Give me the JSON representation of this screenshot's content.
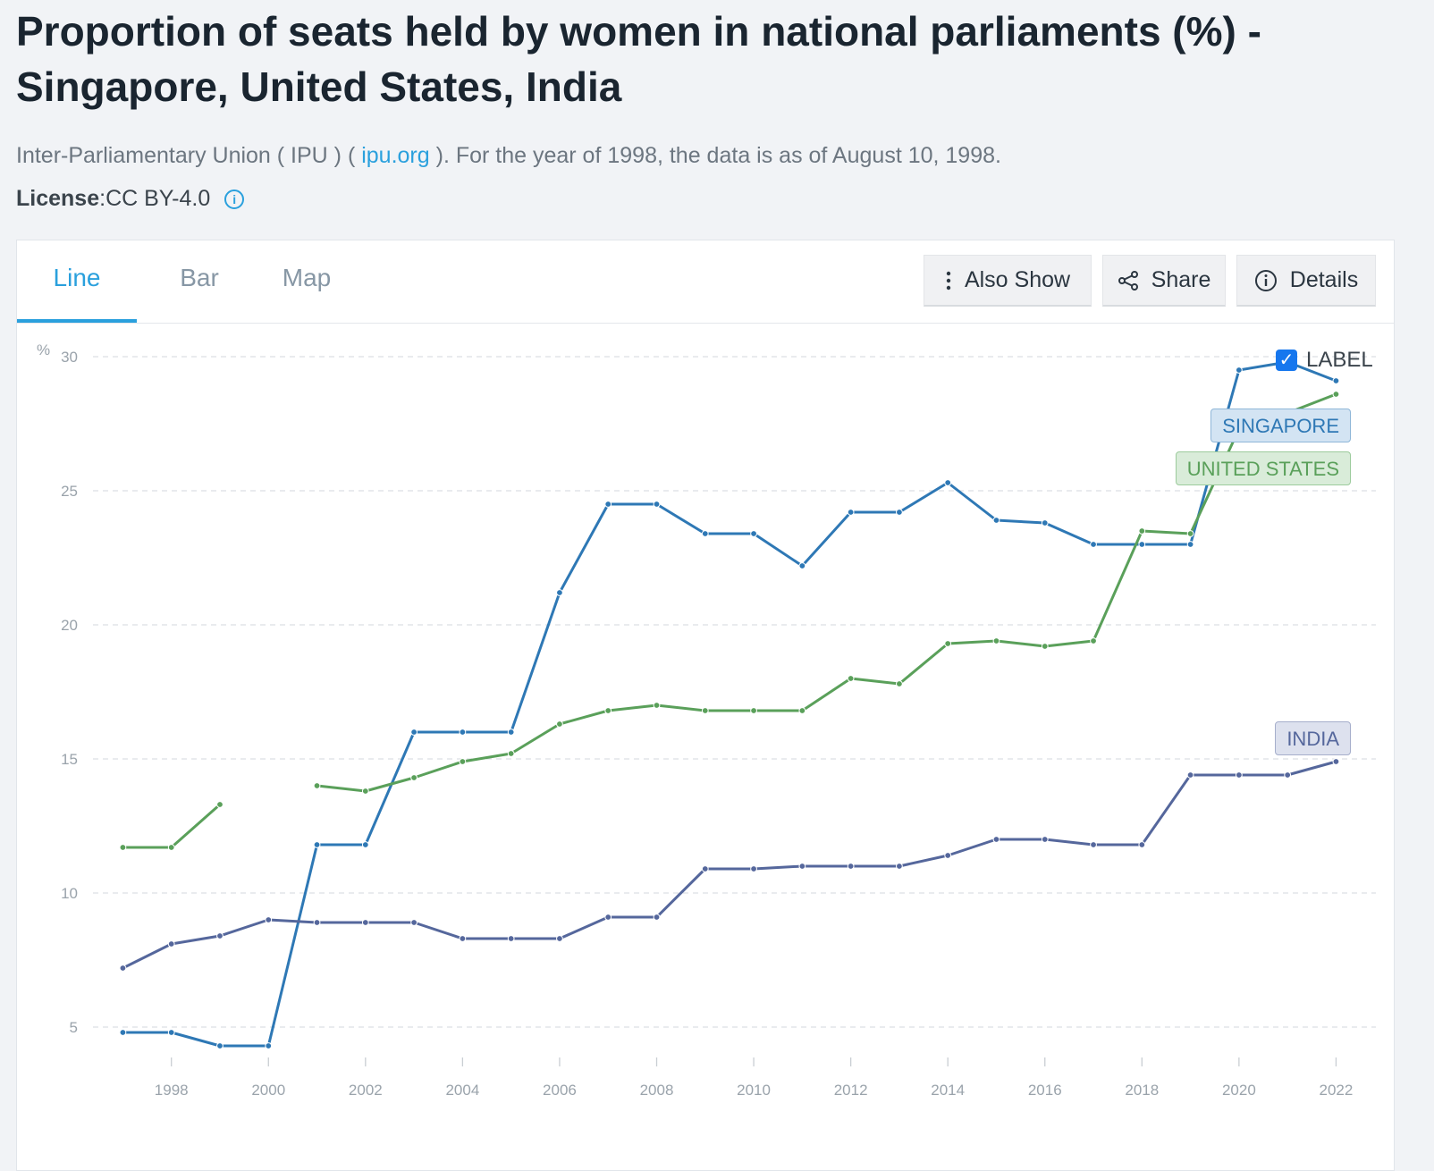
{
  "page": {
    "title": "Proportion of seats held by women in national parliaments (%) - Singapore, United States, India",
    "source_prefix": "Inter-Parliamentary Union ( IPU ) ( ",
    "source_link": "ipu.org",
    "source_suffix": " ). For the year of 1998, the data is as of August 10, 1998.",
    "license_label": "License",
    "license_sep": " : ",
    "license_value": "CC BY-4.0",
    "license_info_icon": "info-icon"
  },
  "tabs": [
    {
      "label": "Line",
      "active": true
    },
    {
      "label": "Bar",
      "active": false
    },
    {
      "label": "Map",
      "active": false
    }
  ],
  "toolbar": {
    "also_show": {
      "label": "Also Show",
      "icon": "vertical-dots-icon"
    },
    "share": {
      "label": "Share",
      "icon": "share-icon"
    },
    "details": {
      "label": "Details",
      "icon": "info-circle-icon"
    }
  },
  "label_toggle": {
    "label": "LABEL",
    "checked": true
  },
  "colors": {
    "singapore": "#2e78b5",
    "united_states": "#5aa05a",
    "india": "#55679c",
    "grid": "#dcdfe3",
    "axis_text": "#9aa3ab"
  },
  "chart_data": {
    "type": "line",
    "ylabel": "%",
    "ylim": [
      3,
      31
    ],
    "yticks": [
      5,
      10,
      15,
      20,
      25,
      30
    ],
    "xlim": [
      1996.2,
      2022.6
    ],
    "xticks": [
      1998,
      2000,
      2002,
      2004,
      2006,
      2008,
      2010,
      2012,
      2014,
      2016,
      2018,
      2020,
      2022
    ],
    "grid": true,
    "x": [
      1997,
      1998,
      1999,
      2000,
      2001,
      2002,
      2003,
      2004,
      2005,
      2006,
      2007,
      2008,
      2009,
      2010,
      2011,
      2012,
      2013,
      2014,
      2015,
      2016,
      2017,
      2018,
      2019,
      2020,
      2021,
      2022
    ],
    "series": [
      {
        "name": "SINGAPORE",
        "color_key": "singapore",
        "values": [
          4.8,
          4.8,
          4.3,
          4.3,
          11.8,
          11.8,
          16.0,
          16.0,
          16.0,
          21.2,
          24.5,
          24.5,
          23.4,
          23.4,
          22.2,
          24.2,
          24.2,
          25.3,
          23.9,
          23.8,
          23.0,
          23.0,
          23.0,
          29.5,
          29.8,
          29.1
        ]
      },
      {
        "name": "UNITED STATES",
        "color_key": "united_states",
        "values": [
          11.7,
          11.7,
          13.3,
          null,
          14.0,
          13.8,
          14.3,
          14.9,
          15.2,
          16.3,
          16.8,
          17.0,
          16.8,
          16.8,
          16.8,
          18.0,
          17.8,
          19.3,
          19.4,
          19.2,
          19.4,
          23.5,
          23.4,
          27.3,
          27.9,
          28.6
        ]
      },
      {
        "name": "INDIA",
        "color_key": "india",
        "values": [
          7.2,
          8.1,
          8.4,
          9.0,
          8.9,
          8.9,
          8.9,
          8.3,
          8.3,
          8.3,
          9.1,
          9.1,
          10.9,
          10.9,
          11.0,
          11.0,
          11.0,
          11.4,
          12.0,
          12.0,
          11.8,
          11.8,
          14.4,
          14.4,
          14.4,
          14.9
        ]
      }
    ]
  }
}
